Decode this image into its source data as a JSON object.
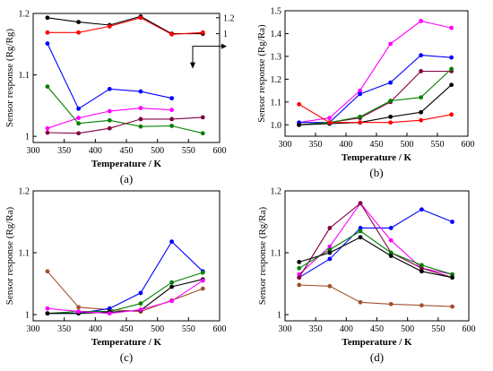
{
  "chart_data": [
    {
      "type": "line",
      "caption": "(a)",
      "xlabel": "Temperature / K",
      "ylabel": "Sensor response (Rg/Rg)",
      "xlim": [
        300,
        600
      ],
      "ylim": [
        0.99,
        1.2
      ],
      "xticks": [
        "300",
        "350",
        "400",
        "450",
        "500",
        "550",
        "600"
      ],
      "yticks": [
        {
          "v": 1.0,
          "label": "1"
        },
        {
          "v": 1.1,
          "label": "1.1"
        },
        {
          "v": 1.2,
          "label": "1.2"
        }
      ],
      "right_axis": {
        "ticks": [
          {
            "v": 1.193,
            "label": "1.2"
          },
          {
            "v": 1.167,
            "label": "1"
          }
        ]
      },
      "grid": false,
      "series": [
        {
          "color": "#000000",
          "x": [
            323,
            373,
            423,
            473,
            523,
            573
          ],
          "y": [
            1.193,
            1.186,
            1.181,
            1.195,
            1.167,
            1.167
          ]
        },
        {
          "color": "#ff0000",
          "x": [
            323,
            373,
            423,
            473,
            523,
            573
          ],
          "y": [
            1.169,
            1.169,
            1.179,
            1.193,
            1.166,
            1.169
          ]
        },
        {
          "color": "#0000ff",
          "x": [
            323,
            373,
            423,
            473,
            523
          ],
          "y": [
            1.151,
            1.045,
            1.077,
            1.073,
            1.062
          ]
        },
        {
          "color": "#ff00ff",
          "x": [
            323,
            373,
            423,
            473,
            523
          ],
          "y": [
            1.013,
            1.03,
            1.041,
            1.046,
            1.043
          ]
        },
        {
          "color": "#008000",
          "x": [
            323,
            373,
            423,
            473,
            523,
            573
          ],
          "y": [
            1.081,
            1.021,
            1.026,
            1.016,
            1.017,
            1.005
          ]
        },
        {
          "color": "#800040",
          "x": [
            323,
            373,
            423,
            473,
            523,
            573
          ],
          "y": [
            1.006,
            1.005,
            1.013,
            1.028,
            1.028,
            1.031
          ]
        }
      ]
    },
    {
      "type": "line",
      "caption": "(b)",
      "xlabel": "Temperature / K",
      "ylabel": "Sensor response (Rg/Ra)",
      "xlim": [
        300,
        600
      ],
      "ylim": [
        0.95,
        1.5
      ],
      "xticks": [
        "300",
        "350",
        "400",
        "450",
        "500",
        "550",
        "600"
      ],
      "yticks": [
        {
          "v": 1.0,
          "label": "1.0"
        },
        {
          "v": 1.1,
          "label": "1.1"
        },
        {
          "v": 1.2,
          "label": "1.2"
        },
        {
          "v": 1.3,
          "label": "1.3"
        },
        {
          "v": 1.4,
          "label": "1.4"
        },
        {
          "v": 1.5,
          "label": "1.5"
        }
      ],
      "grid": false,
      "series": [
        {
          "color": "#ff00ff",
          "x": [
            323,
            373,
            423,
            473,
            523,
            573
          ],
          "y": [
            1.01,
            1.03,
            1.15,
            1.355,
            1.455,
            1.425
          ]
        },
        {
          "color": "#0000ff",
          "x": [
            323,
            373,
            423,
            473,
            523,
            573
          ],
          "y": [
            1.01,
            1.01,
            1.135,
            1.185,
            1.305,
            1.295
          ]
        },
        {
          "color": "#800040",
          "x": [
            323,
            373,
            423,
            473,
            523,
            573
          ],
          "y": [
            1.0,
            1.01,
            1.03,
            1.1,
            1.235,
            1.235
          ]
        },
        {
          "color": "#008000",
          "x": [
            323,
            373,
            423,
            473,
            523,
            573
          ],
          "y": [
            1.0,
            1.01,
            1.035,
            1.105,
            1.12,
            1.245
          ]
        },
        {
          "color": "#000000",
          "x": [
            323,
            373,
            423,
            473,
            523,
            573
          ],
          "y": [
            1.0,
            1.005,
            1.01,
            1.035,
            1.055,
            1.175
          ]
        },
        {
          "color": "#ff0000",
          "x": [
            323,
            373,
            423,
            473,
            523,
            573
          ],
          "y": [
            1.09,
            1.01,
            1.01,
            1.01,
            1.02,
            1.045
          ]
        }
      ]
    },
    {
      "type": "line",
      "caption": "(c)",
      "xlabel": "Temperature / K",
      "ylabel": "Sensor response (Rg/Ra)",
      "xlim": [
        300,
        600
      ],
      "ylim": [
        0.99,
        1.2
      ],
      "xticks": [
        "300",
        "350",
        "400",
        "450",
        "500",
        "550",
        "600"
      ],
      "yticks": [
        {
          "v": 1.0,
          "label": "1"
        },
        {
          "v": 1.1,
          "label": "1.1"
        },
        {
          "v": 1.2,
          "label": "1.2"
        }
      ],
      "grid": false,
      "series": [
        {
          "color": "#a0522d",
          "x": [
            323,
            373,
            423,
            473,
            523,
            573
          ],
          "y": [
            1.07,
            1.012,
            1.008,
            1.005,
            1.023,
            1.042
          ]
        },
        {
          "color": "#0000ff",
          "x": [
            323,
            373,
            423,
            473,
            523,
            573
          ],
          "y": [
            1.002,
            1.002,
            1.01,
            1.035,
            1.118,
            1.07
          ]
        },
        {
          "color": "#008000",
          "x": [
            323,
            373,
            423,
            473,
            523,
            573
          ],
          "y": [
            1.002,
            1.005,
            1.005,
            1.018,
            1.052,
            1.068
          ]
        },
        {
          "color": "#000000",
          "x": [
            323,
            373,
            423,
            473,
            523,
            573
          ],
          "y": [
            1.002,
            1.002,
            1.004,
            1.007,
            1.045,
            1.057
          ]
        },
        {
          "color": "#ff00ff",
          "x": [
            323,
            373,
            423,
            473,
            523,
            573
          ],
          "y": [
            1.01,
            1.005,
            1.002,
            1.008,
            1.022,
            1.055
          ]
        }
      ]
    },
    {
      "type": "line",
      "caption": "(d)",
      "xlabel": "Temperature / K",
      "ylabel": "Sensor response (Rg/Ra)",
      "xlim": [
        300,
        600
      ],
      "ylim": [
        0.99,
        1.2
      ],
      "xticks": [
        "300",
        "350",
        "400",
        "450",
        "500",
        "550",
        "600"
      ],
      "yticks": [
        {
          "v": 1.0,
          "label": "1"
        },
        {
          "v": 1.1,
          "label": "1.1"
        },
        {
          "v": 1.2,
          "label": "1.2"
        }
      ],
      "grid": false,
      "series": [
        {
          "color": "#0000ff",
          "x": [
            323,
            373,
            423,
            473,
            523,
            573
          ],
          "y": [
            1.06,
            1.09,
            1.14,
            1.14,
            1.17,
            1.15
          ]
        },
        {
          "color": "#ff00ff",
          "x": [
            323,
            373,
            423,
            473,
            523,
            573
          ],
          "y": [
            1.065,
            1.11,
            1.18,
            1.12,
            1.075,
            1.065
          ]
        },
        {
          "color": "#800040",
          "x": [
            323,
            373,
            423,
            473,
            523,
            573
          ],
          "y": [
            1.06,
            1.14,
            1.18,
            1.1,
            1.075,
            1.06
          ]
        },
        {
          "color": "#008000",
          "x": [
            323,
            373,
            423,
            473,
            523,
            573
          ],
          "y": [
            1.075,
            1.105,
            1.135,
            1.1,
            1.08,
            1.065
          ]
        },
        {
          "color": "#000000",
          "x": [
            323,
            373,
            423,
            473,
            523,
            573
          ],
          "y": [
            1.085,
            1.1,
            1.125,
            1.095,
            1.07,
            1.06
          ]
        },
        {
          "color": "#a0522d",
          "x": [
            323,
            373,
            423,
            473,
            523,
            573
          ],
          "y": [
            1.048,
            1.046,
            1.02,
            1.017,
            1.015,
            1.013
          ]
        }
      ]
    }
  ]
}
